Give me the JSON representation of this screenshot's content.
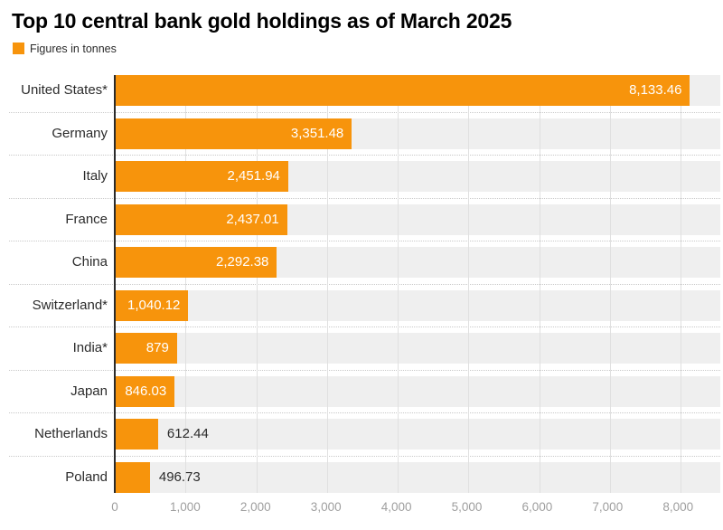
{
  "title": "Top 10 central bank gold holdings as of March 2025",
  "legend": {
    "label": "Figures in tonnes",
    "swatch_color": "#F7940C"
  },
  "chart_data": {
    "type": "bar",
    "orientation": "horizontal",
    "title": "Top 10 central bank gold holdings as of March 2025",
    "unit": "tonnes",
    "legend_entries": [
      "Figures in tonnes"
    ],
    "legend_position": "top-left",
    "categories": [
      "United States*",
      "Germany",
      "Italy",
      "France",
      "China",
      "Switzerland*",
      "India*",
      "Japan",
      "Netherlands",
      "Poland"
    ],
    "values": [
      8133.46,
      3351.48,
      2451.94,
      2437.01,
      2292.38,
      1040.12,
      879,
      846.03,
      612.44,
      496.73
    ],
    "values_formatted": [
      "8,133.46",
      "3,351.48",
      "2,451.94",
      "2,437.01",
      "2,292.38",
      "1,040.12",
      "879",
      "846.03",
      "612.44",
      "496.73"
    ],
    "xlabel": "",
    "ylabel": "",
    "xlim": [
      0,
      8562
    ],
    "xticks": [
      0,
      1000,
      2000,
      3000,
      4000,
      5000,
      6000,
      7000,
      8000
    ],
    "xtick_labels": [
      "0",
      "1,000",
      "2,000",
      "3,000",
      "4,000",
      "5,000",
      "6,000",
      "7,000",
      "8,000"
    ],
    "grid": "vertical-gridlines-and-dotted-row-separators",
    "colors": {
      "bar": "#F7940C",
      "row_band": "#EFEFEF",
      "gridline": "#E0E0E0",
      "axis_line": "#2B2B2B",
      "tick_label": "#9E9E9E",
      "category_label": "#2B2B2B",
      "value_label_inside": "#FFFFFF",
      "value_label_outside": "#2B2B2B",
      "title": "#000000"
    }
  }
}
